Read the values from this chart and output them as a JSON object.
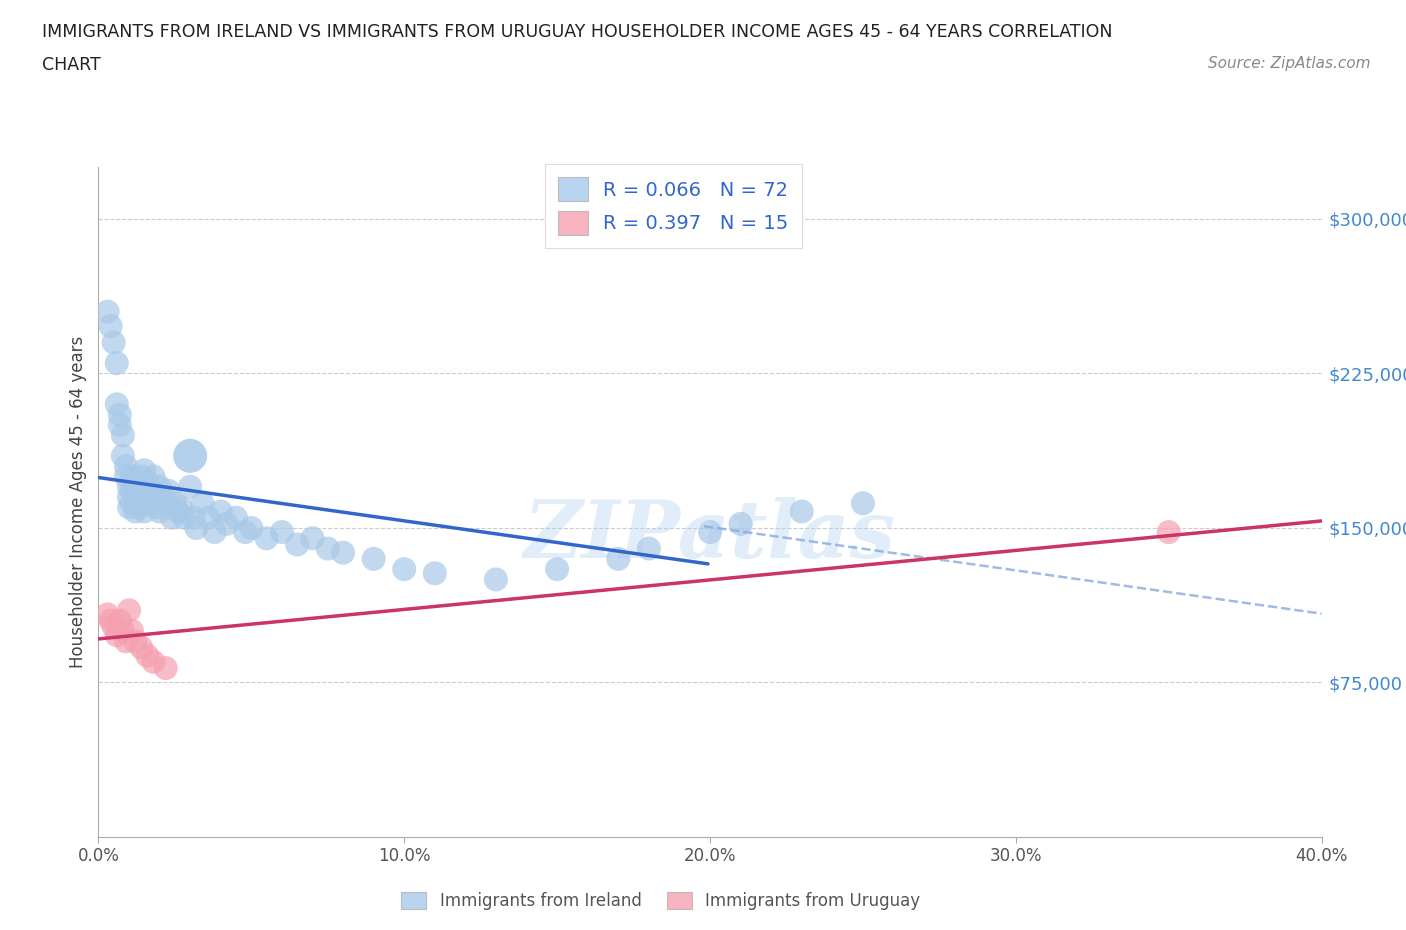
{
  "title_line1": "IMMIGRANTS FROM IRELAND VS IMMIGRANTS FROM URUGUAY HOUSEHOLDER INCOME AGES 45 - 64 YEARS CORRELATION",
  "title_line2": "CHART",
  "source_text": "Source: ZipAtlas.com",
  "ylabel": "Householder Income Ages 45 - 64 years",
  "xlim": [
    0.0,
    0.4
  ],
  "ylim": [
    0,
    325000
  ],
  "xtick_labels": [
    "0.0%",
    "10.0%",
    "20.0%",
    "30.0%",
    "40.0%"
  ],
  "xtick_values": [
    0.0,
    0.1,
    0.2,
    0.3,
    0.4
  ],
  "ytick_labels": [
    "$75,000",
    "$150,000",
    "$225,000",
    "$300,000"
  ],
  "ytick_values": [
    75000,
    150000,
    225000,
    300000
  ],
  "ireland_color": "#a8c8e8",
  "ireland_line_color": "#3366cc",
  "ireland_dash_color": "#88aadd",
  "uruguay_color": "#f4a0b0",
  "uruguay_line_color": "#cc3366",
  "legend_ireland_fill": "#b8d4f0",
  "legend_uruguay_fill": "#f8b4c0",
  "ireland_R": "0.066",
  "ireland_N": "72",
  "uruguay_R": "0.397",
  "uruguay_N": "15",
  "watermark": "ZIPatlas",
  "background_color": "#ffffff",
  "ireland_x": [
    0.003,
    0.004,
    0.005,
    0.006,
    0.006,
    0.007,
    0.007,
    0.008,
    0.008,
    0.009,
    0.009,
    0.01,
    0.01,
    0.01,
    0.011,
    0.011,
    0.011,
    0.012,
    0.012,
    0.012,
    0.013,
    0.013,
    0.014,
    0.014,
    0.015,
    0.015,
    0.015,
    0.016,
    0.016,
    0.017,
    0.017,
    0.018,
    0.018,
    0.019,
    0.02,
    0.02,
    0.021,
    0.022,
    0.023,
    0.024,
    0.025,
    0.026,
    0.027,
    0.028,
    0.03,
    0.031,
    0.032,
    0.034,
    0.036,
    0.038,
    0.04,
    0.042,
    0.045,
    0.048,
    0.05,
    0.055,
    0.06,
    0.065,
    0.07,
    0.075,
    0.08,
    0.09,
    0.1,
    0.11,
    0.13,
    0.15,
    0.17,
    0.18,
    0.2,
    0.21,
    0.23,
    0.25
  ],
  "ireland_y": [
    255000,
    248000,
    240000,
    230000,
    210000,
    205000,
    200000,
    195000,
    185000,
    180000,
    175000,
    170000,
    165000,
    160000,
    175000,
    168000,
    162000,
    172000,
    165000,
    158000,
    168000,
    160000,
    175000,
    162000,
    178000,
    170000,
    158000,
    172000,
    165000,
    168000,
    162000,
    175000,
    165000,
    160000,
    170000,
    158000,
    165000,
    162000,
    168000,
    155000,
    162000,
    158000,
    160000,
    155000,
    170000,
    155000,
    150000,
    162000,
    155000,
    148000,
    158000,
    152000,
    155000,
    148000,
    150000,
    145000,
    148000,
    142000,
    145000,
    140000,
    138000,
    135000,
    130000,
    128000,
    125000,
    130000,
    135000,
    140000,
    148000,
    152000,
    158000,
    162000
  ],
  "ireland_large_x": [
    0.03
  ],
  "ireland_large_y": [
    185000
  ],
  "uruguay_x": [
    0.003,
    0.004,
    0.005,
    0.006,
    0.007,
    0.008,
    0.009,
    0.01,
    0.011,
    0.012,
    0.014,
    0.016,
    0.018,
    0.022,
    0.35
  ],
  "uruguay_y": [
    108000,
    105000,
    102000,
    98000,
    105000,
    100000,
    95000,
    110000,
    100000,
    95000,
    92000,
    88000,
    85000,
    82000,
    148000
  ]
}
